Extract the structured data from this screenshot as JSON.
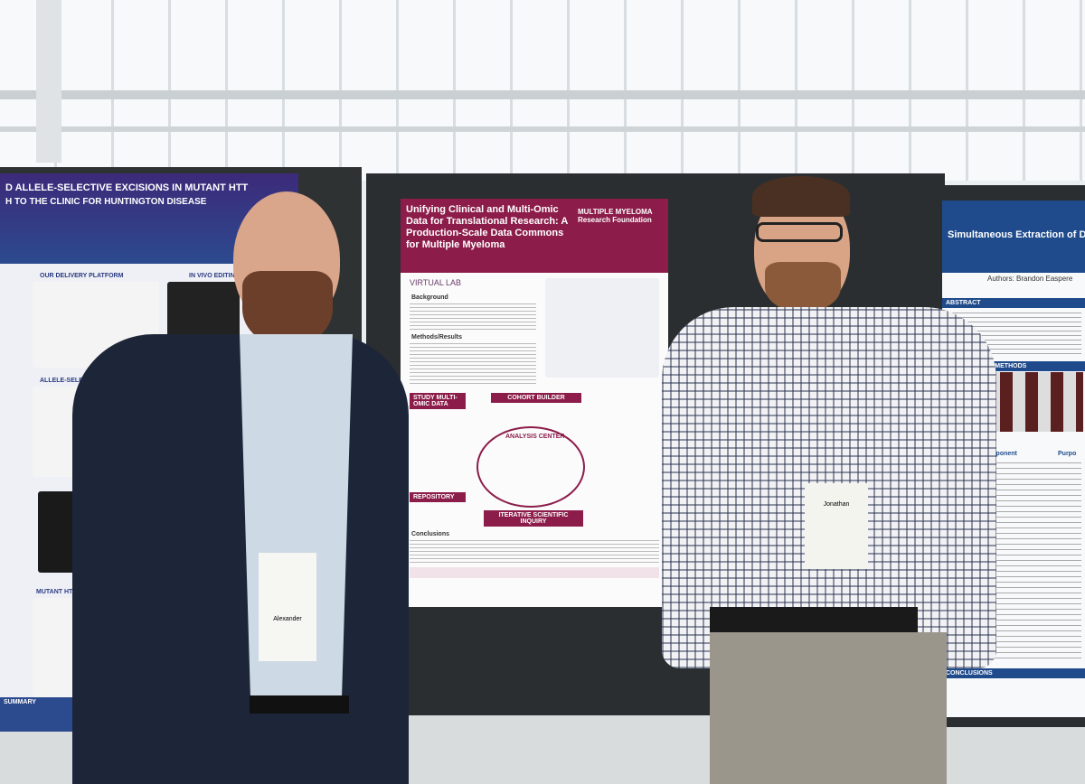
{
  "left_poster": {
    "title": "D ALLELE-SELECTIVE EXCISIONS IN MUTANT HTT",
    "subtitle": "H TO THE CLINIC FOR HUNTINGTON DISEASE",
    "sections": [
      "OUR DELIVERY PLATFORM",
      "IN VIVO EDITING A",
      "ALLELE-SELECTIVE EXCISIONS",
      "MUTANT HTT LOW",
      "SUMMARY"
    ]
  },
  "center_poster": {
    "title": "Unifying Clinical and Multi-Omic Data for Translational Research: A Production-Scale Data Commons for Multiple Myeloma",
    "logo": "MULTIPLE MYELOMA Research Foundation",
    "brand": "VIRTUAL LAB",
    "sections": [
      "Background",
      "Methods/Results",
      "Conclusions"
    ],
    "diagram": [
      "STUDY MULTI-OMIC DATA",
      "COHORT BUILDER",
      "ANALYSIS CENTER",
      "REPOSITORY",
      "ITERATIVE SCIENTIFIC INQUIRY"
    ]
  },
  "right_poster": {
    "title": "Simultaneous Extraction of DNA",
    "authors": "Authors: Brandon Easpere",
    "sections": [
      "ABSTRACT",
      "MATERIAL AND METHODS",
      "CONCLUSIONS"
    ],
    "table_header": [
      "Component",
      "Purpo"
    ]
  },
  "badges": [
    "Alexander",
    "Jonathan"
  ]
}
